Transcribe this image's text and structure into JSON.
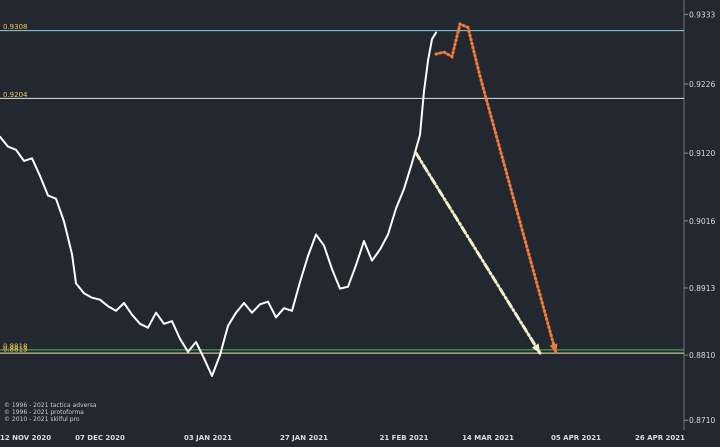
{
  "chart_data": {
    "type": "line",
    "y_ticks": [
      "0.9333",
      "0.9226",
      "0.9120",
      "0.9016",
      "0.8913",
      "0.8810",
      "0.8710"
    ],
    "y_tick_values": [
      0.9333,
      0.9226,
      0.912,
      0.9016,
      0.8913,
      0.881,
      0.871
    ],
    "ylim": [
      0.8695,
      0.9355
    ],
    "x_ticks": [
      "12 NOV 2020",
      "07 DEC 2020",
      "03 JAN 2021",
      "27 JAN 2021",
      "21 FEB 2021",
      "14 MAR 2021",
      "05 APR 2021",
      "26 APR 2021"
    ],
    "x_tick_dates": [
      "2020-11-12",
      "2020-12-07",
      "2021-01-03",
      "2021-01-27",
      "2021-02-21",
      "2021-03-14",
      "2021-04-05",
      "2021-04-26"
    ],
    "xlim": [
      "2020-11-12",
      "2021-05-02"
    ],
    "grid": false,
    "levels": [
      {
        "label": "0.9308",
        "value": 0.9308,
        "color": "#8fd3e0"
      },
      {
        "label": "0.9204",
        "value": 0.9204,
        "color": "#dfe3ea"
      },
      {
        "label": "0.8818",
        "value": 0.8818,
        "color": "#44c44a"
      },
      {
        "label": "0.8813",
        "value": 0.8813,
        "color": "#f0e7b4"
      }
    ],
    "price_series": {
      "color": "#ffffff",
      "points": [
        [
          "2020-11-12",
          0.9145
        ],
        [
          "2020-11-14",
          0.913
        ],
        [
          "2020-11-16",
          0.9125
        ],
        [
          "2020-11-18",
          0.9108
        ],
        [
          "2020-11-20",
          0.9112
        ],
        [
          "2020-11-22",
          0.9085
        ],
        [
          "2020-11-24",
          0.9055
        ],
        [
          "2020-11-26",
          0.905
        ],
        [
          "2020-11-28",
          0.9015
        ],
        [
          "2020-11-30",
          0.8965
        ],
        [
          "2020-12-01",
          0.892
        ],
        [
          "2020-12-03",
          0.8905
        ],
        [
          "2020-12-05",
          0.8898
        ],
        [
          "2020-12-07",
          0.8895
        ],
        [
          "2020-12-09",
          0.8885
        ],
        [
          "2020-12-11",
          0.8878
        ],
        [
          "2020-12-13",
          0.889
        ],
        [
          "2020-12-15",
          0.8872
        ],
        [
          "2020-12-17",
          0.8858
        ],
        [
          "2020-12-19",
          0.8852
        ],
        [
          "2020-12-21",
          0.8875
        ],
        [
          "2020-12-23",
          0.8858
        ],
        [
          "2020-12-25",
          0.8862
        ],
        [
          "2020-12-27",
          0.8835
        ],
        [
          "2020-12-29",
          0.8815
        ],
        [
          "2020-12-31",
          0.883
        ],
        [
          "2021-01-02",
          0.8805
        ],
        [
          "2021-01-04",
          0.8778
        ],
        [
          "2021-01-06",
          0.881
        ],
        [
          "2021-01-08",
          0.8855
        ],
        [
          "2021-01-10",
          0.8875
        ],
        [
          "2021-01-12",
          0.889
        ],
        [
          "2021-01-14",
          0.8875
        ],
        [
          "2021-01-16",
          0.8888
        ],
        [
          "2021-01-18",
          0.8892
        ],
        [
          "2021-01-20",
          0.8868
        ],
        [
          "2021-01-22",
          0.8882
        ],
        [
          "2021-01-24",
          0.8878
        ],
        [
          "2021-01-26",
          0.8922
        ],
        [
          "2021-01-28",
          0.8962
        ],
        [
          "2021-01-30",
          0.8995
        ],
        [
          "2021-02-01",
          0.8978
        ],
        [
          "2021-02-03",
          0.8942
        ],
        [
          "2021-02-05",
          0.8912
        ],
        [
          "2021-02-07",
          0.8915
        ],
        [
          "2021-02-09",
          0.8948
        ],
        [
          "2021-02-11",
          0.8985
        ],
        [
          "2021-02-13",
          0.8955
        ],
        [
          "2021-02-15",
          0.8972
        ],
        [
          "2021-02-17",
          0.8995
        ],
        [
          "2021-02-19",
          0.9035
        ],
        [
          "2021-02-21",
          0.9065
        ],
        [
          "2021-02-23",
          0.9105
        ],
        [
          "2021-02-25",
          0.9148
        ],
        [
          "2021-02-26",
          0.9215
        ],
        [
          "2021-02-27",
          0.9262
        ],
        [
          "2021-02-28",
          0.9295
        ],
        [
          "2021-03-01",
          0.9305
        ]
      ]
    },
    "projections": [
      {
        "name": "",
        "color": "#f07b3a",
        "style": "dotted",
        "arrow": true,
        "points": [
          [
            "2021-03-01",
            0.9272
          ],
          [
            "2021-03-03",
            0.9275
          ],
          [
            "2021-03-05",
            0.9268
          ],
          [
            "2021-03-07",
            0.9318
          ],
          [
            "2021-03-09",
            0.9313
          ],
          [
            "2021-03-12",
            0.9238
          ],
          [
            "2021-03-31",
            0.8813
          ]
        ]
      },
      {
        "name": "",
        "color": "#f3f0c6",
        "style": "dash-dot",
        "arrow": true,
        "points": [
          [
            "2021-02-24",
            0.912
          ],
          [
            "2021-03-27",
            0.8813
          ]
        ]
      }
    ]
  },
  "watermark": {
    "lines": [
      "© 1996 - 2021 tactica adversa",
      "© 1996 - 2021 protoforma",
      "© 2010 - 2021 skilful pro"
    ]
  }
}
